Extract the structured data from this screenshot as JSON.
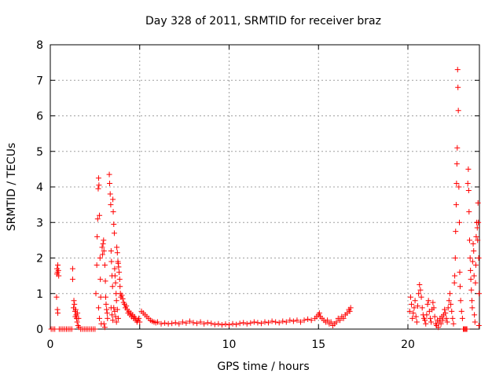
{
  "chart_data": {
    "type": "scatter",
    "title": "Day 328 of 2011, SRMTID for receiver braz",
    "xlabel": "GPS time / hours",
    "ylabel": "SRMTID / TECUs",
    "xlim": [
      0,
      24
    ],
    "ylim": [
      0,
      8
    ],
    "xticks": [
      0,
      5,
      10,
      15,
      20
    ],
    "yticks": [
      0,
      1,
      2,
      3,
      4,
      5,
      6,
      7,
      8
    ],
    "xtick_labels": [
      "0",
      "5",
      "10",
      "15",
      "20"
    ],
    "ytick_labels": [
      "0",
      "1",
      "2",
      "3",
      "4",
      "5",
      "6",
      "7",
      "8"
    ],
    "grid": true,
    "marker": "+",
    "series": [
      {
        "name": "SRMTID",
        "color": "#ff0000",
        "points": [
          [
            0.05,
            0.0
          ],
          [
            0.15,
            0.0
          ],
          [
            0.25,
            0.0
          ],
          [
            0.35,
            0.9
          ],
          [
            0.37,
            1.55
          ],
          [
            0.38,
            1.7
          ],
          [
            0.4,
            1.6
          ],
          [
            0.42,
            1.8
          ],
          [
            0.45,
            1.65
          ],
          [
            0.47,
            1.5
          ],
          [
            0.4,
            0.55
          ],
          [
            0.42,
            0.45
          ],
          [
            0.5,
            0.0
          ],
          [
            0.6,
            0.0
          ],
          [
            0.7,
            0.0
          ],
          [
            0.8,
            0.0
          ],
          [
            0.9,
            0.0
          ],
          [
            1.0,
            0.0
          ],
          [
            1.1,
            0.0
          ],
          [
            1.2,
            0.0
          ],
          [
            1.25,
            1.7
          ],
          [
            1.25,
            1.4
          ],
          [
            1.3,
            0.6
          ],
          [
            1.32,
            0.8
          ],
          [
            1.35,
            0.7
          ],
          [
            1.38,
            0.5
          ],
          [
            1.4,
            0.35
          ],
          [
            1.42,
            0.55
          ],
          [
            1.45,
            0.4
          ],
          [
            1.47,
            0.3
          ],
          [
            1.5,
            0.2
          ],
          [
            1.52,
            0.45
          ],
          [
            1.55,
            0.1
          ],
          [
            1.58,
            0.3
          ],
          [
            1.6,
            0.05
          ],
          [
            1.7,
            0.0
          ],
          [
            1.8,
            0.0
          ],
          [
            1.9,
            0.0
          ],
          [
            2.0,
            0.0
          ],
          [
            2.1,
            0.0
          ],
          [
            2.2,
            0.0
          ],
          [
            2.3,
            0.0
          ],
          [
            2.4,
            0.0
          ],
          [
            2.5,
            0.0
          ],
          [
            2.55,
            1.0
          ],
          [
            2.6,
            1.8
          ],
          [
            2.62,
            2.6
          ],
          [
            2.65,
            3.1
          ],
          [
            2.68,
            3.95
          ],
          [
            2.7,
            4.25
          ],
          [
            2.72,
            4.05
          ],
          [
            2.75,
            3.2
          ],
          [
            2.78,
            2.0
          ],
          [
            2.8,
            1.4
          ],
          [
            2.82,
            0.9
          ],
          [
            2.7,
            0.6
          ],
          [
            2.75,
            0.3
          ],
          [
            2.85,
            0.15
          ],
          [
            2.9,
            2.3
          ],
          [
            2.92,
            2.1
          ],
          [
            2.95,
            2.4
          ],
          [
            2.98,
            2.5
          ],
          [
            3.0,
            2.2
          ],
          [
            3.05,
            1.8
          ],
          [
            3.08,
            1.35
          ],
          [
            3.1,
            0.9
          ],
          [
            3.12,
            0.7
          ],
          [
            3.15,
            0.55
          ],
          [
            3.18,
            0.45
          ],
          [
            3.2,
            0.3
          ],
          [
            3.0,
            0.15
          ],
          [
            3.05,
            0.05
          ],
          [
            3.3,
            4.35
          ],
          [
            3.32,
            4.1
          ],
          [
            3.35,
            3.8
          ],
          [
            3.38,
            3.5
          ],
          [
            3.4,
            2.2
          ],
          [
            3.42,
            1.9
          ],
          [
            3.45,
            1.5
          ],
          [
            3.48,
            1.2
          ],
          [
            3.5,
            3.65
          ],
          [
            3.52,
            3.3
          ],
          [
            3.55,
            2.95
          ],
          [
            3.58,
            2.7
          ],
          [
            3.6,
            1.7
          ],
          [
            3.62,
            1.5
          ],
          [
            3.65,
            1.3
          ],
          [
            3.68,
            1.0
          ],
          [
            3.7,
            0.8
          ],
          [
            3.72,
            2.3
          ],
          [
            3.75,
            2.15
          ],
          [
            3.78,
            1.9
          ],
          [
            3.8,
            1.85
          ],
          [
            3.82,
            1.75
          ],
          [
            3.85,
            1.6
          ],
          [
            3.88,
            1.4
          ],
          [
            3.9,
            1.2
          ],
          [
            3.92,
            1.0
          ],
          [
            3.95,
            0.9
          ],
          [
            3.4,
            0.6
          ],
          [
            3.45,
            0.4
          ],
          [
            3.5,
            0.25
          ],
          [
            3.55,
            0.6
          ],
          [
            3.6,
            0.5
          ],
          [
            3.65,
            0.35
          ],
          [
            3.7,
            0.2
          ],
          [
            3.75,
            0.55
          ],
          [
            3.8,
            0.3
          ],
          [
            4.0,
            0.95
          ],
          [
            4.05,
            0.85
          ],
          [
            4.1,
            0.75
          ],
          [
            4.15,
            0.7
          ],
          [
            4.2,
            0.6
          ],
          [
            4.25,
            0.65
          ],
          [
            4.3,
            0.55
          ],
          [
            4.35,
            0.45
          ],
          [
            4.4,
            0.5
          ],
          [
            4.45,
            0.4
          ],
          [
            4.5,
            0.45
          ],
          [
            4.55,
            0.35
          ],
          [
            4.6,
            0.4
          ],
          [
            4.65,
            0.3
          ],
          [
            4.7,
            0.35
          ],
          [
            4.75,
            0.3
          ],
          [
            4.8,
            0.25
          ],
          [
            4.85,
            0.2
          ],
          [
            4.9,
            0.25
          ],
          [
            4.95,
            0.3
          ],
          [
            5.0,
            0.2
          ],
          [
            5.1,
            0.5
          ],
          [
            5.2,
            0.45
          ],
          [
            5.3,
            0.4
          ],
          [
            5.4,
            0.35
          ],
          [
            5.5,
            0.3
          ],
          [
            5.6,
            0.25
          ],
          [
            5.7,
            0.22
          ],
          [
            5.8,
            0.2
          ],
          [
            5.9,
            0.18
          ],
          [
            6.0,
            0.2
          ],
          [
            6.2,
            0.15
          ],
          [
            6.4,
            0.17
          ],
          [
            6.6,
            0.15
          ],
          [
            6.8,
            0.16
          ],
          [
            7.0,
            0.18
          ],
          [
            7.2,
            0.15
          ],
          [
            7.4,
            0.2
          ],
          [
            7.6,
            0.17
          ],
          [
            7.8,
            0.22
          ],
          [
            8.0,
            0.18
          ],
          [
            8.2,
            0.16
          ],
          [
            8.4,
            0.2
          ],
          [
            8.6,
            0.15
          ],
          [
            8.8,
            0.18
          ],
          [
            9.0,
            0.16
          ],
          [
            9.2,
            0.13
          ],
          [
            9.4,
            0.15
          ],
          [
            9.6,
            0.12
          ],
          [
            9.8,
            0.14
          ],
          [
            10.0,
            0.12
          ],
          [
            10.2,
            0.15
          ],
          [
            10.4,
            0.13
          ],
          [
            10.6,
            0.16
          ],
          [
            10.8,
            0.18
          ],
          [
            11.0,
            0.15
          ],
          [
            11.2,
            0.17
          ],
          [
            11.4,
            0.2
          ],
          [
            11.6,
            0.18
          ],
          [
            11.8,
            0.16
          ],
          [
            12.0,
            0.2
          ],
          [
            12.2,
            0.18
          ],
          [
            12.4,
            0.22
          ],
          [
            12.6,
            0.2
          ],
          [
            12.8,
            0.18
          ],
          [
            13.0,
            0.22
          ],
          [
            13.2,
            0.2
          ],
          [
            13.4,
            0.25
          ],
          [
            13.6,
            0.22
          ],
          [
            13.8,
            0.25
          ],
          [
            14.0,
            0.2
          ],
          [
            14.2,
            0.25
          ],
          [
            14.4,
            0.28
          ],
          [
            14.6,
            0.25
          ],
          [
            14.8,
            0.3
          ],
          [
            14.9,
            0.35
          ],
          [
            15.0,
            0.4
          ],
          [
            15.05,
            0.45
          ],
          [
            15.1,
            0.35
          ],
          [
            15.2,
            0.3
          ],
          [
            15.3,
            0.25
          ],
          [
            15.4,
            0.2
          ],
          [
            15.5,
            0.25
          ],
          [
            15.6,
            0.15
          ],
          [
            15.7,
            0.2
          ],
          [
            15.8,
            0.1
          ],
          [
            15.9,
            0.15
          ],
          [
            16.0,
            0.2
          ],
          [
            16.1,
            0.3
          ],
          [
            16.2,
            0.25
          ],
          [
            16.3,
            0.35
          ],
          [
            16.4,
            0.3
          ],
          [
            16.5,
            0.4
          ],
          [
            16.6,
            0.45
          ],
          [
            16.7,
            0.55
          ],
          [
            16.75,
            0.5
          ],
          [
            16.8,
            0.6
          ],
          [
            20.1,
            0.5
          ],
          [
            20.15,
            0.9
          ],
          [
            20.2,
            0.7
          ],
          [
            20.25,
            0.3
          ],
          [
            20.3,
            0.45
          ],
          [
            20.35,
            0.6
          ],
          [
            20.4,
            0.8
          ],
          [
            20.45,
            0.35
          ],
          [
            20.5,
            0.2
          ],
          [
            20.55,
            0.65
          ],
          [
            20.6,
            1.0
          ],
          [
            20.65,
            1.25
          ],
          [
            20.7,
            1.1
          ],
          [
            20.75,
            0.9
          ],
          [
            20.8,
            0.6
          ],
          [
            20.85,
            0.4
          ],
          [
            20.9,
            0.3
          ],
          [
            20.95,
            0.25
          ],
          [
            21.0,
            0.15
          ],
          [
            21.05,
            0.4
          ],
          [
            21.1,
            0.7
          ],
          [
            21.15,
            0.8
          ],
          [
            21.2,
            0.5
          ],
          [
            21.25,
            0.3
          ],
          [
            21.3,
            0.2
          ],
          [
            21.35,
            0.55
          ],
          [
            21.4,
            0.75
          ],
          [
            21.45,
            0.6
          ],
          [
            21.5,
            0.35
          ],
          [
            21.55,
            0.15
          ],
          [
            21.6,
            0.1
          ],
          [
            21.65,
            0.25
          ],
          [
            21.7,
            0.05
          ],
          [
            21.75,
            0.2
          ],
          [
            21.8,
            0.3
          ],
          [
            21.85,
            0.15
          ],
          [
            21.9,
            0.35
          ],
          [
            21.95,
            0.25
          ],
          [
            22.0,
            0.4
          ],
          [
            22.05,
            0.55
          ],
          [
            22.1,
            0.45
          ],
          [
            22.15,
            0.3
          ],
          [
            22.2,
            0.2
          ],
          [
            22.25,
            0.6
          ],
          [
            22.3,
            0.8
          ],
          [
            22.35,
            1.0
          ],
          [
            22.4,
            0.7
          ],
          [
            22.45,
            0.5
          ],
          [
            22.5,
            0.3
          ],
          [
            22.55,
            0.15
          ],
          [
            22.6,
            1.3
          ],
          [
            22.62,
            1.5
          ],
          [
            22.65,
            2.0
          ],
          [
            22.67,
            2.75
          ],
          [
            22.7,
            3.5
          ],
          [
            22.72,
            4.1
          ],
          [
            22.74,
            4.65
          ],
          [
            22.76,
            5.1
          ],
          [
            22.78,
            7.3
          ],
          [
            22.8,
            6.8
          ],
          [
            22.82,
            6.15
          ],
          [
            22.85,
            4.0
          ],
          [
            22.88,
            3.0
          ],
          [
            22.9,
            1.6
          ],
          [
            22.92,
            1.2
          ],
          [
            22.95,
            0.8
          ],
          [
            23.0,
            0.5
          ],
          [
            23.05,
            0.3
          ],
          [
            23.1,
            0.0
          ],
          [
            23.15,
            0.0
          ],
          [
            23.2,
            0.0
          ],
          [
            23.25,
            0.0
          ],
          [
            23.3,
            0.0
          ],
          [
            23.35,
            4.1
          ],
          [
            23.38,
            4.5
          ],
          [
            23.4,
            3.9
          ],
          [
            23.42,
            3.3
          ],
          [
            23.45,
            2.5
          ],
          [
            23.48,
            2.0
          ],
          [
            23.5,
            1.65
          ],
          [
            23.52,
            1.4
          ],
          [
            23.55,
            1.1
          ],
          [
            23.58,
            0.8
          ],
          [
            23.6,
            0.6
          ],
          [
            23.62,
            1.9
          ],
          [
            23.65,
            2.4
          ],
          [
            23.68,
            2.2
          ],
          [
            23.7,
            1.5
          ],
          [
            23.72,
            0.4
          ],
          [
            23.75,
            0.2
          ],
          [
            23.78,
            1.3
          ],
          [
            23.8,
            1.8
          ],
          [
            23.82,
            2.6
          ],
          [
            23.85,
            3.0
          ],
          [
            23.88,
            2.85
          ],
          [
            23.9,
            2.5
          ],
          [
            23.92,
            3.55
          ],
          [
            23.94,
            3.0
          ],
          [
            23.96,
            2.0
          ],
          [
            23.98,
            1.0
          ],
          [
            23.97,
            0.1
          ]
        ]
      }
    ]
  }
}
